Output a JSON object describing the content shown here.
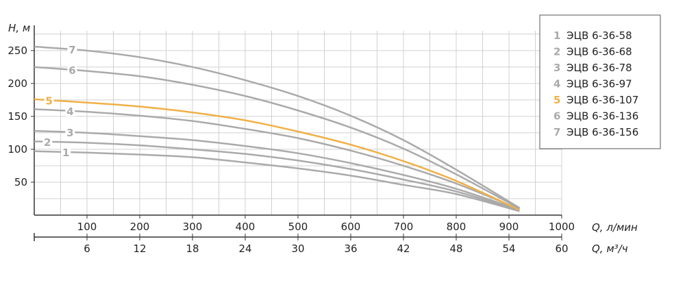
{
  "chart_data": {
    "type": "line",
    "ylabel": "H, м",
    "xlabel": "Q, л/мин",
    "x2label": "Q, м³/ч",
    "xlim": [
      0,
      1000
    ],
    "ylim": [
      0,
      280
    ],
    "x_ticks": [
      100,
      200,
      300,
      400,
      500,
      600,
      700,
      800,
      900,
      1000
    ],
    "x2_ticks": [
      6,
      12,
      18,
      24,
      30,
      36,
      42,
      48,
      54,
      60
    ],
    "y_ticks": [
      50,
      100,
      150,
      200,
      250
    ],
    "grid": true,
    "legend_position": "top-right",
    "colors": {
      "default": "#aaaaaa",
      "highlight": "#f0b046",
      "grid": "#d0d0d0",
      "axis": "#333333"
    },
    "series": [
      {
        "name": "ЭЦВ 6-36-58",
        "label": "1",
        "highlight": false,
        "x": [
          0,
          100,
          200,
          300,
          400,
          500,
          600,
          700,
          800,
          920
        ],
        "y": [
          97,
          95,
          92,
          88,
          80,
          71,
          60,
          46,
          32,
          6
        ]
      },
      {
        "name": "ЭЦВ 6-36-68",
        "label": "2",
        "highlight": false,
        "x": [
          0,
          100,
          200,
          300,
          400,
          500,
          600,
          700,
          800,
          920
        ],
        "y": [
          112,
          110,
          106,
          100,
          93,
          83,
          70,
          54,
          36,
          7
        ]
      },
      {
        "name": "ЭЦВ 6-36-78",
        "label": "3",
        "highlight": false,
        "x": [
          0,
          100,
          200,
          300,
          400,
          500,
          600,
          700,
          800,
          920
        ],
        "y": [
          128,
          125,
          120,
          114,
          105,
          94,
          79,
          61,
          40,
          8
        ]
      },
      {
        "name": "ЭЦВ 6-36-97",
        "label": "4",
        "highlight": false,
        "x": [
          0,
          100,
          200,
          300,
          400,
          500,
          600,
          700,
          800,
          920
        ],
        "y": [
          161,
          157,
          151,
          143,
          131,
          117,
          98,
          75,
          48,
          9
        ]
      },
      {
        "name": "ЭЦВ 6-36-107",
        "label": "5",
        "highlight": true,
        "x": [
          0,
          100,
          200,
          300,
          400,
          500,
          600,
          700,
          800,
          920
        ],
        "y": [
          176,
          171,
          165,
          156,
          144,
          127,
          107,
          82,
          52,
          8
        ]
      },
      {
        "name": "ЭЦВ 6-36-136",
        "label": "6",
        "highlight": false,
        "x": [
          0,
          100,
          200,
          300,
          400,
          500,
          600,
          700,
          800,
          920
        ],
        "y": [
          225,
          219,
          211,
          198,
          181,
          159,
          133,
          101,
          62,
          10
        ]
      },
      {
        "name": "ЭЦВ 6-36-156",
        "label": "7",
        "highlight": false,
        "x": [
          0,
          100,
          200,
          300,
          400,
          500,
          600,
          700,
          800,
          920
        ],
        "y": [
          256,
          250,
          240,
          225,
          205,
          181,
          151,
          114,
          69,
          11
        ]
      }
    ]
  }
}
